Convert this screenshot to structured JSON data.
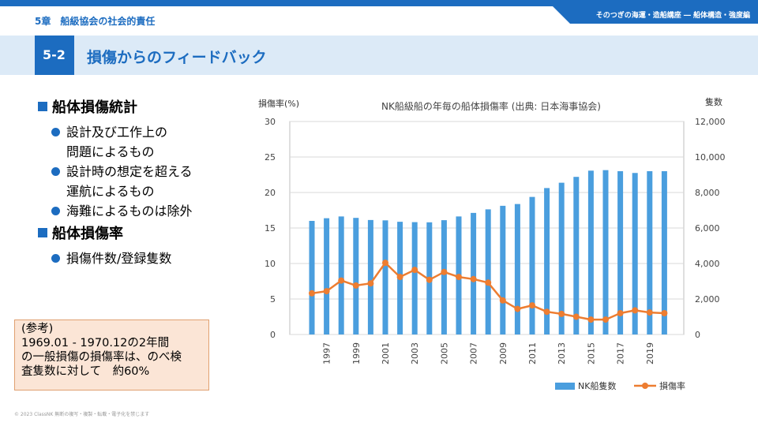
{
  "header": {
    "chapter": "5章　船級協会の社会的責任",
    "series_title": "そのつぎの海運・造船講座 ― 船体構造・強度編"
  },
  "section": {
    "number": "5-2",
    "title": "損傷からのフィードバック"
  },
  "bullets": {
    "heading1": "船体損傷統計",
    "item1_line1": "設計及び工作上の",
    "item1_line2": "問題によるもの",
    "item2_line1": "設計時の想定を超える",
    "item2_line2": "運航によるもの",
    "item3": "海難によるものは除外",
    "heading2": "船体損傷率",
    "item4": "損傷件数/登録隻数"
  },
  "note": {
    "line1": "(参考)",
    "line2": "1969.01 - 1970.12の2年間",
    "line3": "の一般損傷の損傷率は、のべ検",
    "line4": "査隻数に対して　約60%"
  },
  "footer": {
    "copyright": "© 2023 ClassNK 無断の複写・複製・転載・電子化を禁じます"
  },
  "colors": {
    "accent": "#1c6cc0",
    "bar": "#4a9ede",
    "line": "#ed7d31"
  },
  "chart_data": {
    "type": "bar",
    "title": "NK船級船の年毎の船体損傷率 (出典: 日本海事協会)",
    "ylabel_left": "損傷率(%)",
    "ylabel_right": "隻数",
    "ylim_left": [
      0,
      30
    ],
    "ylim_right": [
      0,
      12000
    ],
    "yticks_left": [
      "0",
      "5",
      "10",
      "15",
      "20",
      "25",
      "30"
    ],
    "yticks_right": [
      "0",
      "2,000",
      "4,000",
      "6,000",
      "8,000",
      "10,000",
      "12,000"
    ],
    "x": [
      1996,
      1997,
      1998,
      1999,
      2000,
      2001,
      2002,
      2003,
      2004,
      2005,
      2006,
      2007,
      2008,
      2009,
      2010,
      2011,
      2012,
      2013,
      2014,
      2015,
      2016,
      2017,
      2018,
      2019,
      2020
    ],
    "xtick_labels": [
      "1997",
      "1999",
      "2001",
      "2003",
      "2005",
      "2007",
      "2009",
      "2011",
      "2013",
      "2015",
      "2017",
      "2019"
    ],
    "grid": true,
    "legend_position": "bottom-right",
    "series": [
      {
        "name": "NK船隻数",
        "type": "bar",
        "axis": "right",
        "values": [
          6400,
          6550,
          6650,
          6570,
          6450,
          6430,
          6350,
          6330,
          6320,
          6440,
          6650,
          6850,
          7050,
          7250,
          7350,
          7750,
          8250,
          8550,
          8880,
          9230,
          9260,
          9200,
          9100,
          9200,
          9200
        ]
      },
      {
        "name": "損傷率",
        "type": "line",
        "axis": "left",
        "values": [
          5.8,
          6.1,
          7.6,
          6.9,
          7.2,
          10.1,
          8.1,
          9.1,
          7.7,
          8.8,
          8.1,
          7.8,
          7.3,
          4.8,
          3.6,
          4.1,
          3.2,
          2.9,
          2.5,
          2.1,
          2.1,
          3.0,
          3.4,
          3.1,
          3.0
        ]
      }
    ]
  }
}
